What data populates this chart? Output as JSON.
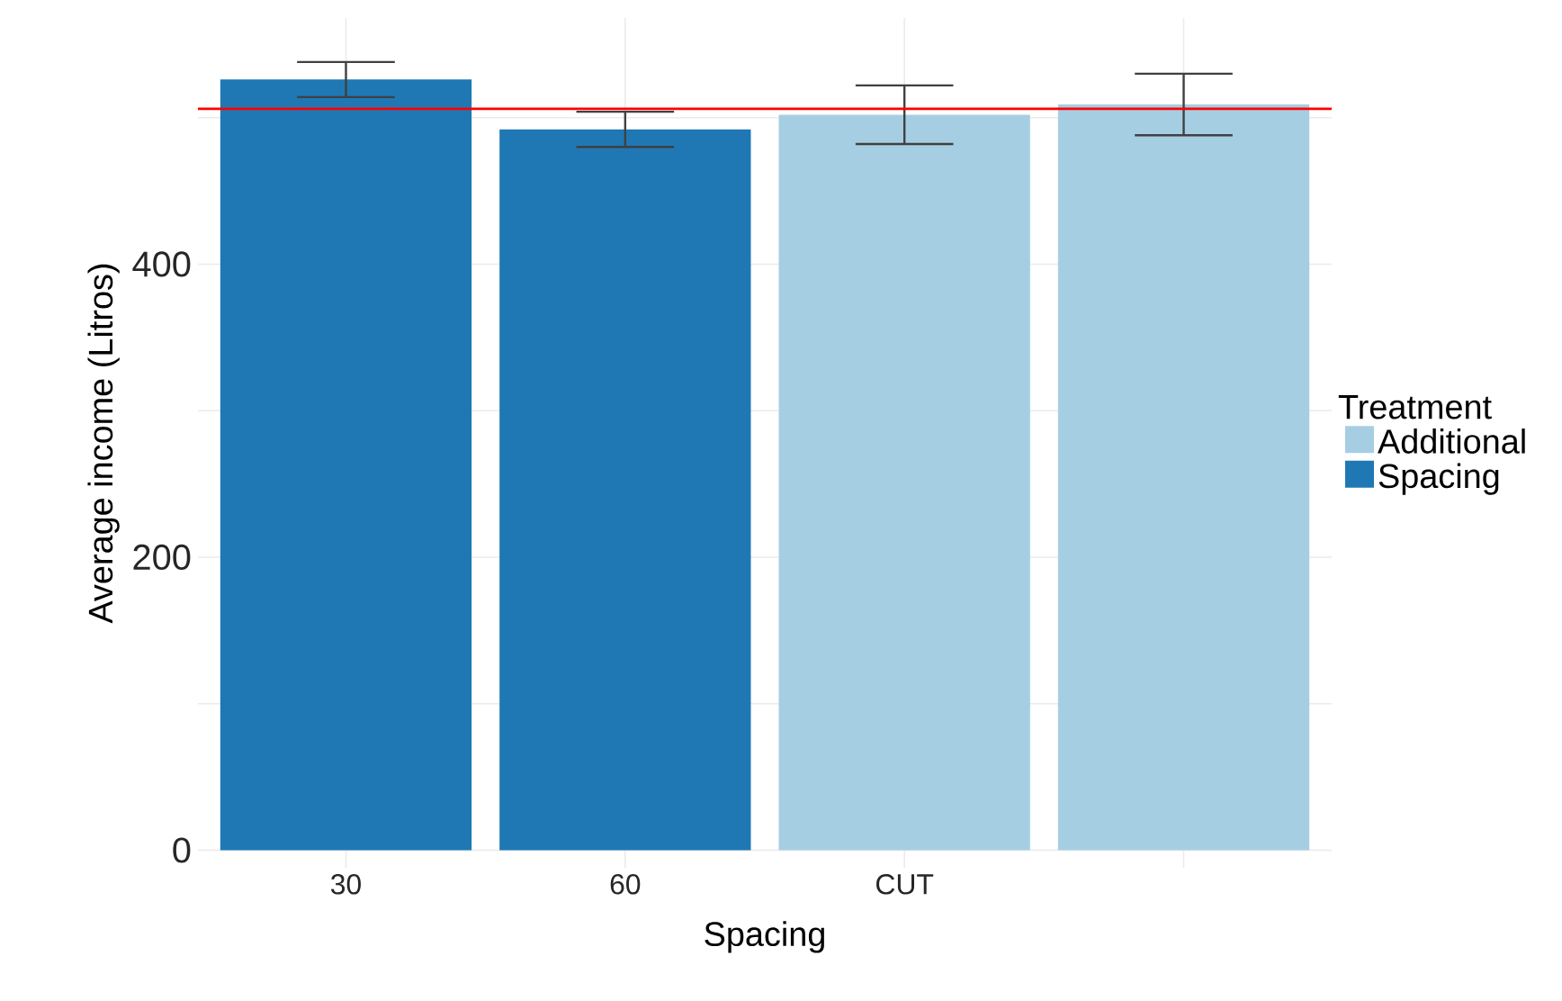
{
  "chart_data": {
    "type": "bar",
    "xlabel": "Spacing",
    "ylabel": "Average income (Litros)",
    "legend_title": "Treatment",
    "categories": [
      "30",
      "60",
      "CUT",
      null
    ],
    "series": [
      {
        "name": "Additional",
        "color": "#a6cee3",
        "values": [
          null,
          null,
          502,
          509
        ],
        "errors": [
          null,
          null,
          20,
          21
        ]
      },
      {
        "name": "Spacing",
        "color": "#1f78b4",
        "values": [
          526,
          492,
          null,
          null
        ],
        "errors": [
          12,
          12,
          null,
          null
        ]
      }
    ],
    "ylim": [
      -12,
      568
    ],
    "yticks": [
      0,
      {
        "value": 100,
        "label": null
      },
      200,
      {
        "value": 300,
        "label": null
      },
      400,
      {
        "value": 500,
        "label": null
      }
    ],
    "grid": true,
    "legend": "right",
    "ref_lines": [
      {
        "axis": "y",
        "value": 506,
        "color": "#ff0000"
      }
    ]
  }
}
